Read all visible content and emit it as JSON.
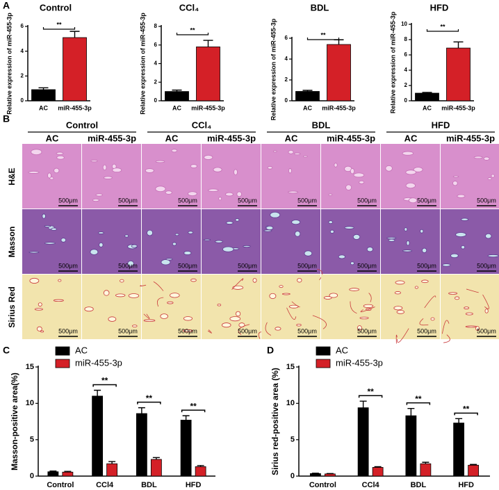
{
  "panels": [
    "A",
    "B",
    "C",
    "D"
  ],
  "chart_data": [
    {
      "type": "bar",
      "title": "Control",
      "ylabel": "Relative expression of miR-455-3p",
      "categories": [
        "AC",
        "miR-455-3p"
      ],
      "values": [
        0.9,
        5.1
      ],
      "errors": [
        0.15,
        0.5
      ],
      "colors": [
        "#000000",
        "#d42027"
      ],
      "ylim": [
        0,
        6
      ],
      "yticks": [
        0,
        2,
        4,
        6
      ],
      "annotation": "**"
    },
    {
      "type": "bar",
      "title": "CCl₄",
      "ylabel": "Relative expression of miR-455-3p",
      "categories": [
        "AC",
        "miR-455-3p"
      ],
      "values": [
        1.0,
        5.8
      ],
      "errors": [
        0.15,
        0.7
      ],
      "colors": [
        "#000000",
        "#d42027"
      ],
      "ylim": [
        0,
        8
      ],
      "yticks": [
        0,
        2,
        4,
        6,
        8
      ],
      "annotation": "**"
    },
    {
      "type": "bar",
      "title": "BDL",
      "ylabel": "Relative expression of miR-455-3p",
      "categories": [
        "AC",
        "miR-455-3p"
      ],
      "values": [
        0.9,
        5.4
      ],
      "errors": [
        0.1,
        0.45
      ],
      "colors": [
        "#000000",
        "#d42027"
      ],
      "ylim": [
        0,
        6
      ],
      "yticks": [
        0,
        2,
        4,
        6
      ],
      "annotation": "**"
    },
    {
      "type": "bar",
      "title": "HFD",
      "ylabel": "Relative expression of miR-455-3p",
      "categories": [
        "AC",
        "miR-455-3p"
      ],
      "values": [
        1.0,
        6.9
      ],
      "errors": [
        0.1,
        0.8
      ],
      "colors": [
        "#000000",
        "#d42027"
      ],
      "ylim": [
        0,
        10
      ],
      "yticks": [
        0,
        2,
        4,
        6,
        8,
        10
      ],
      "annotation": "**"
    },
    {
      "type": "grouped_bar",
      "ylabel": "Masson-positive area(%)",
      "categories": [
        "Control",
        "CCl4",
        "BDL",
        "HFD"
      ],
      "series": [
        {
          "name": "AC",
          "color": "#000000",
          "values": [
            0.6,
            11.0,
            8.6,
            7.7
          ],
          "errors": [
            0.1,
            0.8,
            0.8,
            0.6
          ]
        },
        {
          "name": "miR-455-3p",
          "color": "#d42027",
          "values": [
            0.55,
            1.7,
            2.3,
            1.3
          ],
          "errors": [
            0.1,
            0.3,
            0.25,
            0.15
          ]
        }
      ],
      "ylim": [
        0,
        15
      ],
      "yticks": [
        0,
        5,
        10,
        15
      ],
      "annotations": [
        null,
        "**",
        "**",
        "**"
      ]
    },
    {
      "type": "grouped_bar",
      "ylabel": "Sirius red-positive area (%)",
      "categories": [
        "Control",
        "CCl4",
        "BDL",
        "HFD"
      ],
      "series": [
        {
          "name": "AC",
          "color": "#000000",
          "values": [
            0.35,
            9.4,
            8.3,
            7.3
          ],
          "errors": [
            0.05,
            0.9,
            1.0,
            0.6
          ]
        },
        {
          "name": "miR-455-3p",
          "color": "#d42027",
          "values": [
            0.3,
            1.2,
            1.7,
            1.5
          ],
          "errors": [
            0.05,
            0.1,
            0.2,
            0.1
          ]
        }
      ],
      "ylim": [
        0,
        15
      ],
      "yticks": [
        0,
        5,
        10,
        15
      ],
      "annotations": [
        null,
        "**",
        "**",
        "**"
      ]
    }
  ],
  "histology": {
    "groups": [
      "Control",
      "CCl₄",
      "BDL",
      "HFD"
    ],
    "columns": [
      "AC",
      "miR-455-3p",
      "AC",
      "miR-455-3p",
      "AC",
      "miR-455-3p",
      "AC",
      "miR-455-3p"
    ],
    "rows": [
      "H&E",
      "Masson",
      "Sirius Red"
    ],
    "scale_bar": "500μm"
  }
}
